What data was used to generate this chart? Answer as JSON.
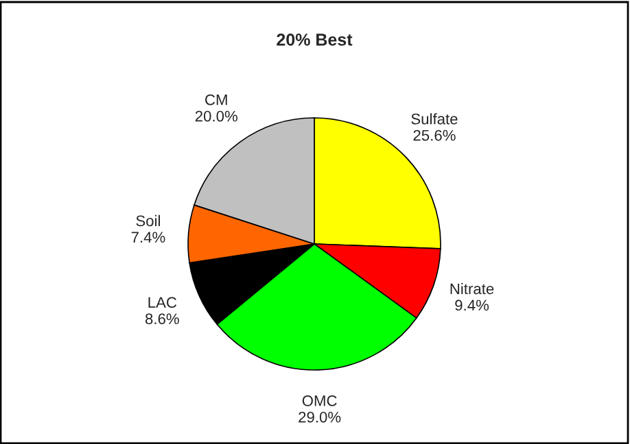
{
  "chart_data": {
    "type": "pie",
    "title": "20% Best",
    "categories": [
      "Sulfate",
      "Nitrate",
      "OMC",
      "LAC",
      "Soil",
      "CM"
    ],
    "values": [
      25.6,
      9.4,
      29.0,
      8.6,
      7.4,
      20.0
    ],
    "value_labels": [
      "25.6%",
      "9.4%",
      "29.0%",
      "8.6%",
      "7.4%",
      "20.0%"
    ],
    "colors": [
      "#ffff00",
      "#ff0000",
      "#00ff00",
      "#000000",
      "#ff6600",
      "#c0c0c0"
    ]
  }
}
